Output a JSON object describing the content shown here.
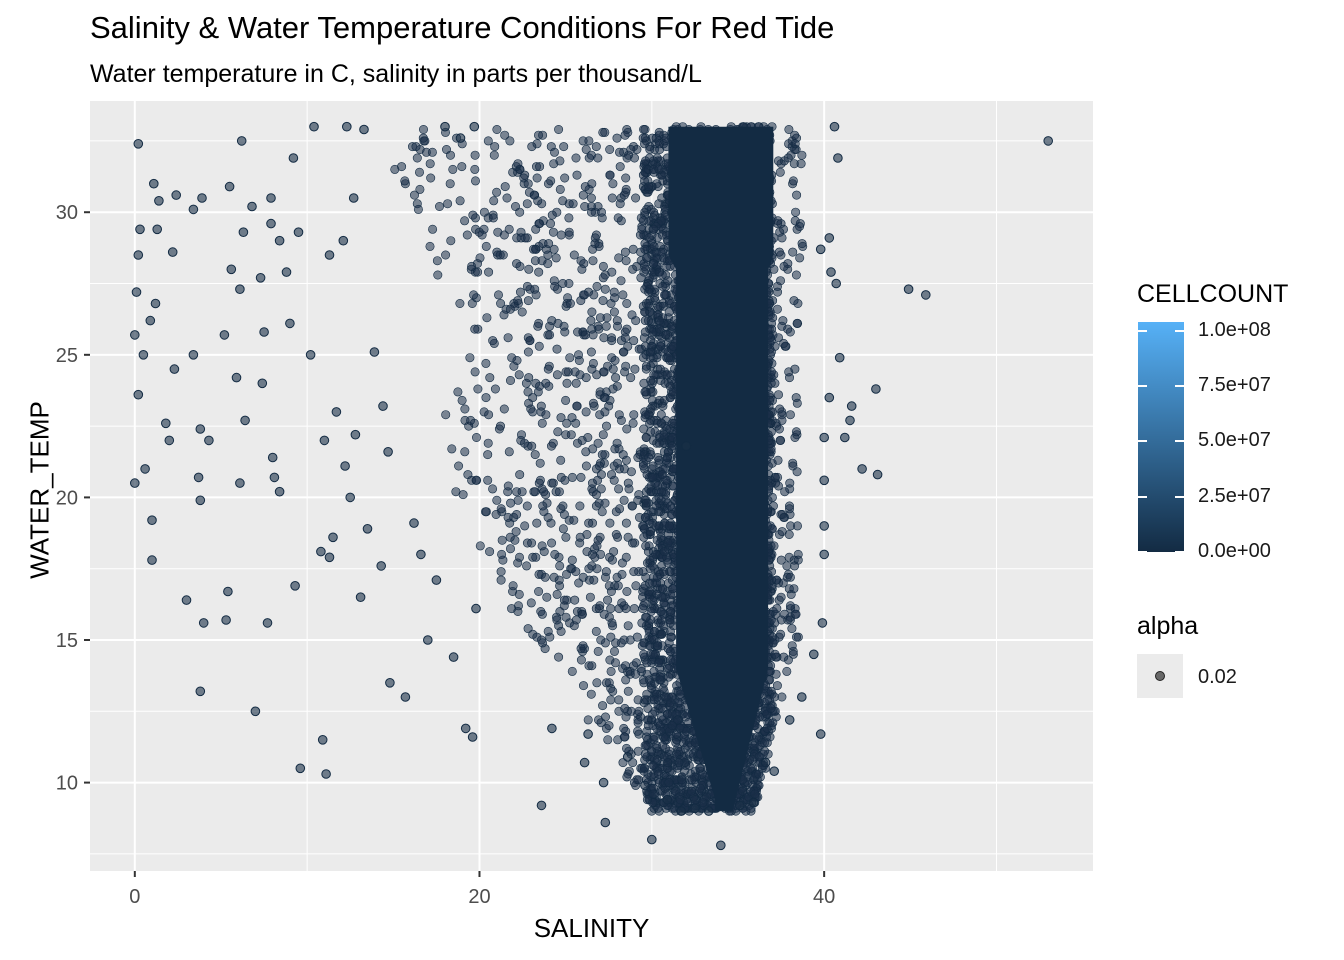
{
  "chart_data": {
    "type": "scatter",
    "title": "Salinity & Water Temperature Conditions For Red Tide",
    "subtitle": "Water temperature in C, salinity in parts per thousand/L",
    "xlabel": "SALINITY",
    "ylabel": "WATER_TEMP",
    "xlim": [
      -2.6,
      55.6
    ],
    "ylim": [
      6.9,
      33.9
    ],
    "xticks": [
      0,
      20,
      40
    ],
    "xtick_labels": [
      "0",
      "20",
      "40"
    ],
    "yticks": [
      10,
      15,
      20,
      25,
      30
    ],
    "ytick_labels": [
      "10",
      "15",
      "20",
      "25",
      "30"
    ],
    "grid": true,
    "background": "#ebebeb",
    "dense_region": {
      "description_x_range": [
        30,
        38
      ],
      "y_range": [
        9,
        33
      ],
      "color": "#132b43"
    },
    "points": [
      {
        "x": 0.2,
        "y": 32.4
      },
      {
        "x": 0.3,
        "y": 29.4
      },
      {
        "x": 0.2,
        "y": 28.5
      },
      {
        "x": 0.1,
        "y": 27.2
      },
      {
        "x": 0.0,
        "y": 25.7
      },
      {
        "x": 0.5,
        "y": 25.0
      },
      {
        "x": 0.2,
        "y": 23.6
      },
      {
        "x": 0.0,
        "y": 20.5
      },
      {
        "x": 0.6,
        "y": 21.0
      },
      {
        "x": 1.0,
        "y": 19.2
      },
      {
        "x": 1.0,
        "y": 17.8
      },
      {
        "x": 1.1,
        "y": 31.0
      },
      {
        "x": 1.3,
        "y": 29.4
      },
      {
        "x": 1.2,
        "y": 26.8
      },
      {
        "x": 0.9,
        "y": 26.2
      },
      {
        "x": 1.4,
        "y": 30.4
      },
      {
        "x": 1.8,
        "y": 22.6
      },
      {
        "x": 2.0,
        "y": 22.0
      },
      {
        "x": 2.2,
        "y": 28.6
      },
      {
        "x": 2.3,
        "y": 24.5
      },
      {
        "x": 2.4,
        "y": 30.6
      },
      {
        "x": 3.0,
        "y": 16.4
      },
      {
        "x": 3.4,
        "y": 30.1
      },
      {
        "x": 3.4,
        "y": 25.0
      },
      {
        "x": 3.7,
        "y": 20.7
      },
      {
        "x": 3.8,
        "y": 22.4
      },
      {
        "x": 3.9,
        "y": 30.5
      },
      {
        "x": 3.8,
        "y": 13.2
      },
      {
        "x": 4.0,
        "y": 15.6
      },
      {
        "x": 4.3,
        "y": 22.0
      },
      {
        "x": 3.8,
        "y": 19.9
      },
      {
        "x": 5.2,
        "y": 25.7
      },
      {
        "x": 5.5,
        "y": 30.9
      },
      {
        "x": 5.6,
        "y": 28.0
      },
      {
        "x": 5.4,
        "y": 16.7
      },
      {
        "x": 5.3,
        "y": 15.7
      },
      {
        "x": 5.9,
        "y": 24.2
      },
      {
        "x": 6.2,
        "y": 32.5
      },
      {
        "x": 6.3,
        "y": 29.3
      },
      {
        "x": 6.1,
        "y": 27.3
      },
      {
        "x": 6.4,
        "y": 22.7
      },
      {
        "x": 6.1,
        "y": 20.5
      },
      {
        "x": 6.8,
        "y": 30.2
      },
      {
        "x": 7.0,
        "y": 12.5
      },
      {
        "x": 7.3,
        "y": 27.7
      },
      {
        "x": 7.5,
        "y": 25.8
      },
      {
        "x": 7.4,
        "y": 24.0
      },
      {
        "x": 7.7,
        "y": 15.6
      },
      {
        "x": 7.9,
        "y": 30.5
      },
      {
        "x": 7.9,
        "y": 29.6
      },
      {
        "x": 8.0,
        "y": 21.4
      },
      {
        "x": 8.1,
        "y": 20.7
      },
      {
        "x": 8.4,
        "y": 20.2
      },
      {
        "x": 8.4,
        "y": 29.0
      },
      {
        "x": 8.8,
        "y": 27.9
      },
      {
        "x": 9.0,
        "y": 26.1
      },
      {
        "x": 9.2,
        "y": 31.9
      },
      {
        "x": 9.3,
        "y": 16.9
      },
      {
        "x": 9.5,
        "y": 29.3
      },
      {
        "x": 9.6,
        "y": 10.5
      },
      {
        "x": 10.2,
        "y": 25.0
      },
      {
        "x": 10.4,
        "y": 33.0
      },
      {
        "x": 10.8,
        "y": 18.1
      },
      {
        "x": 10.9,
        "y": 11.5
      },
      {
        "x": 11.0,
        "y": 22.0
      },
      {
        "x": 11.1,
        "y": 10.3
      },
      {
        "x": 11.3,
        "y": 17.9
      },
      {
        "x": 11.3,
        "y": 28.5
      },
      {
        "x": 11.5,
        "y": 18.6
      },
      {
        "x": 11.7,
        "y": 23.0
      },
      {
        "x": 12.1,
        "y": 29.0
      },
      {
        "x": 12.2,
        "y": 21.1
      },
      {
        "x": 12.3,
        "y": 33.0
      },
      {
        "x": 12.5,
        "y": 20.0
      },
      {
        "x": 12.7,
        "y": 30.5
      },
      {
        "x": 12.8,
        "y": 22.2
      },
      {
        "x": 13.1,
        "y": 16.5
      },
      {
        "x": 13.3,
        "y": 32.9
      },
      {
        "x": 13.5,
        "y": 18.9
      },
      {
        "x": 13.9,
        "y": 25.1
      },
      {
        "x": 14.3,
        "y": 17.6
      },
      {
        "x": 14.4,
        "y": 23.2
      },
      {
        "x": 14.7,
        "y": 21.6
      },
      {
        "x": 14.8,
        "y": 13.5
      },
      {
        "x": 15.7,
        "y": 13.0
      },
      {
        "x": 16.2,
        "y": 19.1
      },
      {
        "x": 16.6,
        "y": 18.0
      },
      {
        "x": 17.0,
        "y": 15.0
      },
      {
        "x": 17.5,
        "y": 17.1
      },
      {
        "x": 18.0,
        "y": 33.0
      },
      {
        "x": 18.5,
        "y": 14.4
      },
      {
        "x": 18.9,
        "y": 32.6
      },
      {
        "x": 19.2,
        "y": 11.9
      },
      {
        "x": 19.6,
        "y": 11.6
      },
      {
        "x": 19.8,
        "y": 16.1
      },
      {
        "x": 19.7,
        "y": 33.0
      },
      {
        "x": 23.6,
        "y": 9.2
      },
      {
        "x": 24.2,
        "y": 11.9
      },
      {
        "x": 26.1,
        "y": 10.7
      },
      {
        "x": 26.3,
        "y": 11.7
      },
      {
        "x": 27.2,
        "y": 10.0
      },
      {
        "x": 27.3,
        "y": 8.6
      },
      {
        "x": 28.6,
        "y": 10.9
      },
      {
        "x": 29.6,
        "y": 9.9
      },
      {
        "x": 30.0,
        "y": 8.0
      },
      {
        "x": 30.9,
        "y": 9.4
      },
      {
        "x": 31.7,
        "y": 9.0
      },
      {
        "x": 32.5,
        "y": 9.1
      },
      {
        "x": 33.3,
        "y": 9.0
      },
      {
        "x": 34.0,
        "y": 7.8
      },
      {
        "x": 35.1,
        "y": 9.2
      },
      {
        "x": 35.9,
        "y": 9.3
      },
      {
        "x": 36.6,
        "y": 10.7
      },
      {
        "x": 37.1,
        "y": 10.4
      },
      {
        "x": 38.0,
        "y": 12.2
      },
      {
        "x": 38.7,
        "y": 13.0
      },
      {
        "x": 39.4,
        "y": 14.5
      },
      {
        "x": 39.8,
        "y": 11.7
      },
      {
        "x": 39.9,
        "y": 15.6
      },
      {
        "x": 40.0,
        "y": 18.0
      },
      {
        "x": 40.0,
        "y": 19.0
      },
      {
        "x": 40.0,
        "y": 20.6
      },
      {
        "x": 40.0,
        "y": 22.1
      },
      {
        "x": 40.3,
        "y": 23.5
      },
      {
        "x": 40.9,
        "y": 24.9
      },
      {
        "x": 41.2,
        "y": 22.1
      },
      {
        "x": 41.5,
        "y": 22.7
      },
      {
        "x": 41.6,
        "y": 23.2
      },
      {
        "x": 42.2,
        "y": 21.0
      },
      {
        "x": 43.0,
        "y": 23.8
      },
      {
        "x": 43.1,
        "y": 20.8
      },
      {
        "x": 44.9,
        "y": 27.3
      },
      {
        "x": 45.9,
        "y": 27.1
      },
      {
        "x": 40.6,
        "y": 33.0
      },
      {
        "x": 40.8,
        "y": 31.9
      },
      {
        "x": 40.3,
        "y": 29.1
      },
      {
        "x": 40.4,
        "y": 27.9
      },
      {
        "x": 40.7,
        "y": 27.5
      },
      {
        "x": 39.8,
        "y": 28.7
      },
      {
        "x": 53.0,
        "y": 32.5
      },
      {
        "x": 32.0,
        "y": 21.8
      }
    ],
    "color_legend": {
      "title": "CELLCOUNT",
      "labels": [
        "1.0e+08",
        "7.5e+07",
        "5.0e+07",
        "2.5e+07",
        "0.0e+00"
      ],
      "values": [
        100000000,
        75000000,
        50000000,
        25000000,
        0
      ],
      "range": [
        0,
        104000000
      ],
      "color_low": "#132b43",
      "color_high": "#56b1f7"
    },
    "alpha_legend": {
      "title": "alpha",
      "label": "0.02"
    },
    "point_color": "#1b3048",
    "grid_color": "#ffffff"
  }
}
